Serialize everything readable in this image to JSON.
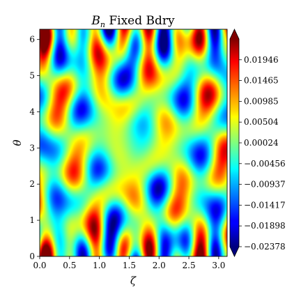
{
  "chart_data": {
    "type": "heatmap",
    "title_main": "B",
    "title_sub": "n",
    "title_rest": " Fixed Bdry",
    "xlabel": "ζ",
    "ylabel": "θ",
    "xlim": [
      0,
      3.14159
    ],
    "ylim": [
      0,
      6.28318
    ],
    "x_ticks": [
      0.0,
      0.5,
      1.0,
      1.5,
      2.0,
      2.5,
      3.0
    ],
    "x_tick_labels": [
      "0.0",
      "0.5",
      "1.0",
      "1.5",
      "2.0",
      "2.5",
      "3.0"
    ],
    "y_ticks": [
      0,
      1,
      2,
      3,
      4,
      5,
      6
    ],
    "y_tick_labels": [
      "0",
      "1",
      "2",
      "3",
      "4",
      "5",
      "6"
    ],
    "colormap": "jet",
    "colorbar": {
      "min": -0.02378,
      "max": 0.02426,
      "extend": "both",
      "ticks": [
        0.01946,
        0.01465,
        0.00985,
        0.00504,
        0.00024,
        -0.00456,
        -0.00937,
        -0.01417,
        -0.01898,
        -0.02378
      ],
      "tick_labels": [
        "0.01946",
        "0.01465",
        "0.00985",
        "0.00504",
        "0.00024",
        "−0.00456",
        "−0.00937",
        "−0.01417",
        "−0.01898",
        "−0.02378"
      ]
    },
    "grid": false
  }
}
